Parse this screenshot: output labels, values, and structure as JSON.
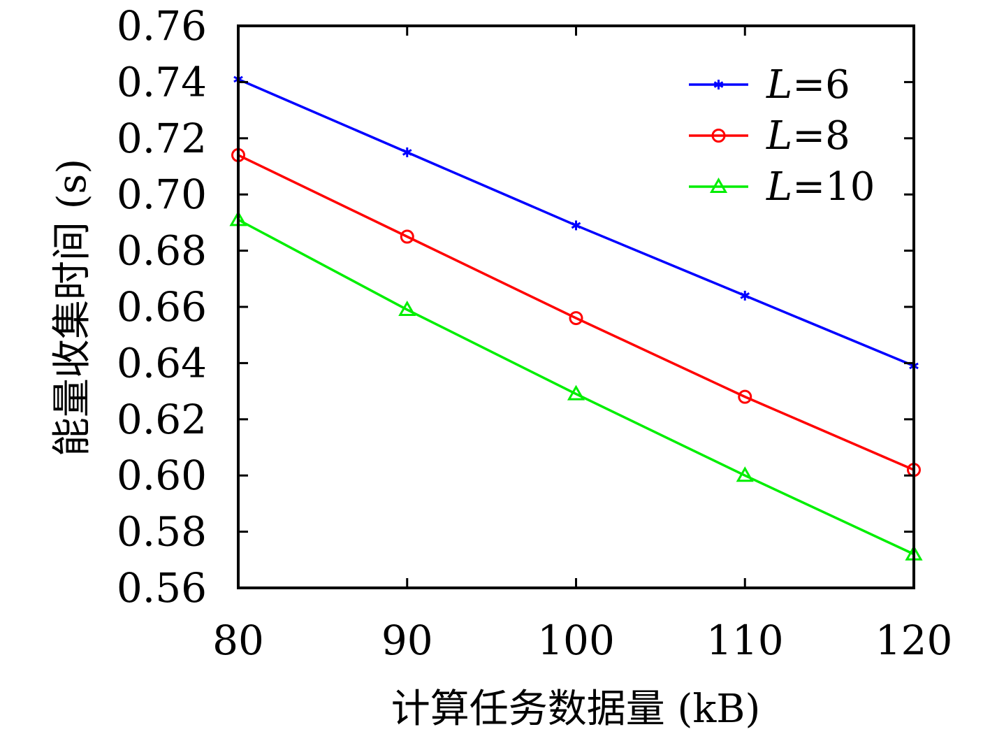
{
  "chart_data": {
    "type": "line",
    "xlabel": "计算任务数据量 (kB)",
    "ylabel": "能量收集时间 (s)",
    "x": [
      80,
      90,
      100,
      110,
      120
    ],
    "xlim": [
      80,
      120
    ],
    "ylim": [
      0.56,
      0.76
    ],
    "xticks": [
      "80",
      "90",
      "100",
      "110",
      "120"
    ],
    "yticks": [
      "0.56",
      "0.58",
      "0.60",
      "0.62",
      "0.64",
      "0.66",
      "0.68",
      "0.70",
      "0.72",
      "0.74",
      "0.76"
    ],
    "grid": false,
    "legend_position": "top-right",
    "series": [
      {
        "name": "L=6",
        "name_var": "L",
        "name_rest": "=6",
        "color": "#0000ff",
        "marker": "asterisk",
        "values": [
          0.741,
          0.715,
          0.689,
          0.664,
          0.639
        ]
      },
      {
        "name": "L=8",
        "name_var": "L",
        "name_rest": "=8",
        "color": "#ff0000",
        "marker": "circle",
        "values": [
          0.714,
          0.685,
          0.656,
          0.628,
          0.602
        ]
      },
      {
        "name": "L=10",
        "name_var": "L",
        "name_rest": "=10",
        "color": "#00ee00",
        "marker": "triangle",
        "values": [
          0.691,
          0.659,
          0.629,
          0.6,
          0.572
        ]
      }
    ]
  }
}
